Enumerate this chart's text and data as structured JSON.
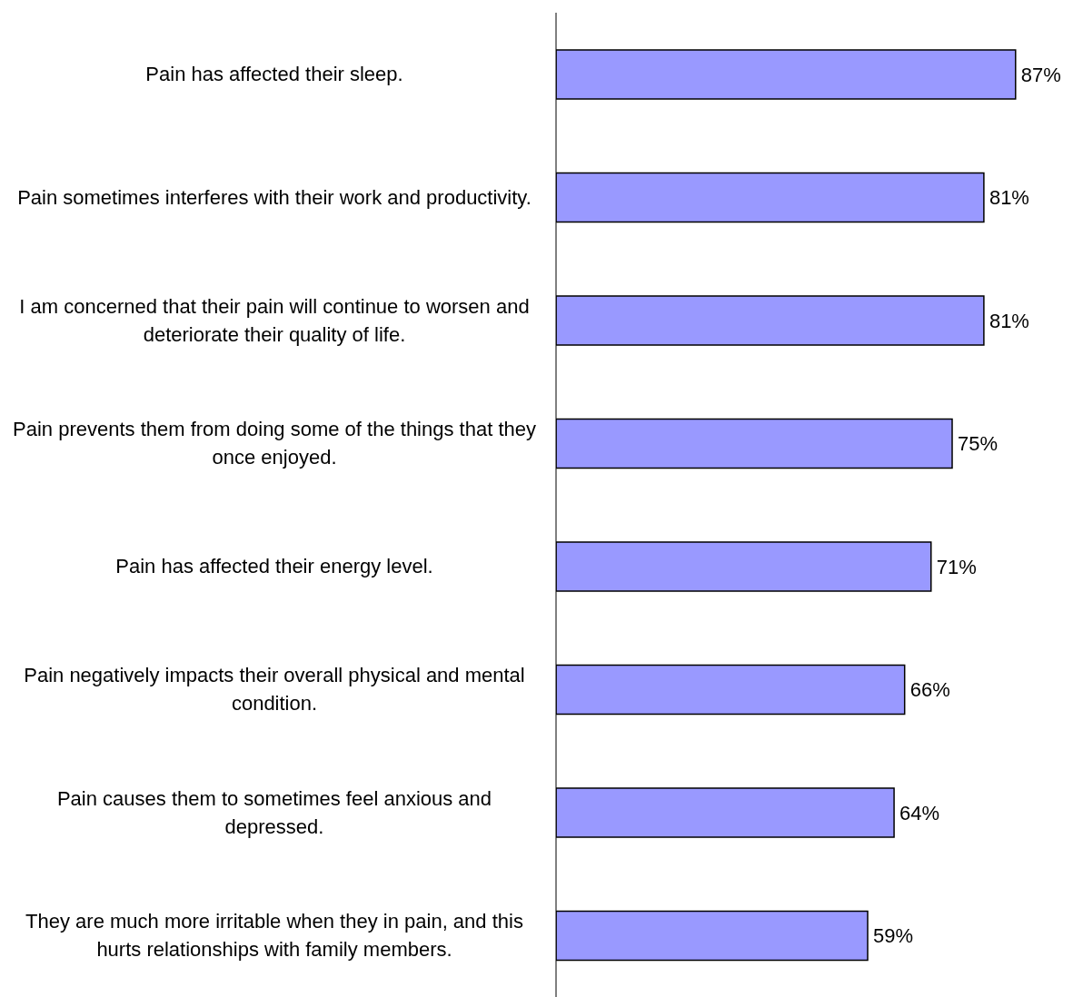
{
  "chart_data": {
    "type": "bar",
    "orientation": "horizontal",
    "categories": [
      "Pain has affected their sleep.",
      "Pain sometimes interferes with their work and productivity.",
      "I am concerned that their pain will continue to worsen and deteriorate their quality of life.",
      "Pain prevents them from doing some of the things that they once enjoyed.",
      "Pain has affected their energy level.",
      "Pain negatively impacts their overall physical and mental condition.",
      "Pain causes them to sometimes feel anxious and depressed.",
      "They are much more irritable when they in pain, and this hurts relationships with family members."
    ],
    "values": [
      87,
      81,
      81,
      75,
      71,
      66,
      64,
      59
    ],
    "color": "#9999ff",
    "value_labels": [
      "87%",
      "81%",
      "81%",
      "75%",
      "71%",
      "66%",
      "64%",
      "59%"
    ]
  }
}
